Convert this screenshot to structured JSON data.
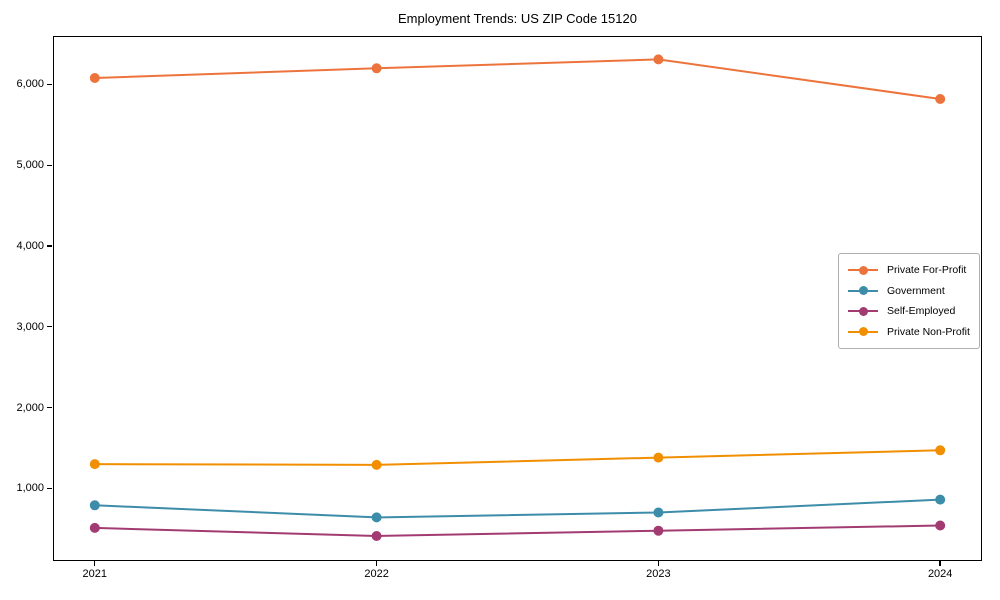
{
  "figure": {
    "title": "Employment Trends: US ZIP Code 15120"
  },
  "chart_data": {
    "type": "line",
    "title": "Employment Trends: US ZIP Code 15120",
    "x": [
      "2021",
      "2022",
      "2023",
      "2024"
    ],
    "xlabel": "",
    "ylabel": "",
    "ylim": [
      100,
      6600
    ],
    "yticks": [
      1000,
      2000,
      3000,
      4000,
      5000,
      6000
    ],
    "ytick_labels": [
      "1,000",
      "2,000",
      "3,000",
      "4,000",
      "5,000",
      "6,000"
    ],
    "grid": false,
    "legend_position": "center right",
    "marker": "circle",
    "series": [
      {
        "name": "Private For-Profit",
        "color": "#EC743C",
        "values": [
          6080,
          6200,
          6310,
          5820
        ]
      },
      {
        "name": "Government",
        "color": "#3D8CAA",
        "values": [
          790,
          640,
          700,
          860
        ]
      },
      {
        "name": "Self-Employed",
        "color": "#A23B72",
        "values": [
          510,
          410,
          475,
          540
        ]
      },
      {
        "name": "Private Non-Profit",
        "color": "#F18F01",
        "values": [
          1300,
          1290,
          1380,
          1470
        ]
      }
    ]
  }
}
